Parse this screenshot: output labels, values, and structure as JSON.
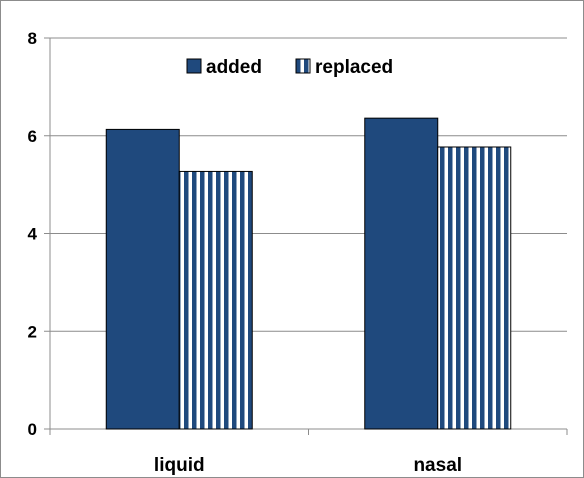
{
  "chart_data": {
    "type": "bar",
    "title": "",
    "xlabel": "",
    "ylabel": "",
    "categories": [
      "liquid",
      "nasal"
    ],
    "series": [
      {
        "name": "added",
        "values": [
          6.13,
          6.36
        ],
        "color": "#1f497d",
        "pattern": "solid"
      },
      {
        "name": "replaced",
        "values": [
          5.27,
          5.77
        ],
        "color": "#1f497d",
        "pattern": "vertical-stripes"
      }
    ],
    "ylim": [
      0,
      8
    ],
    "yticks": [
      0,
      2,
      4,
      6,
      8
    ],
    "grid": true,
    "legend_position": "top-center"
  }
}
